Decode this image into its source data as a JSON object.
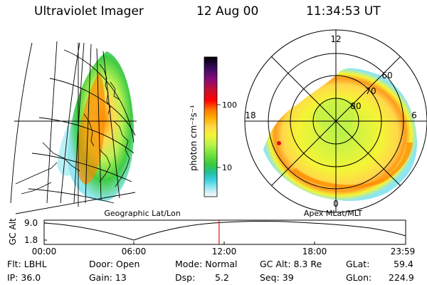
{
  "header": {
    "instrument": "Ultraviolet Imager",
    "date": "12 Aug 00",
    "time": "11:34:53 UT"
  },
  "geo_panel": {
    "label": "Geographic Lat/Lon"
  },
  "colorbar": {
    "unit_label": "photon cm⁻²s⁻¹",
    "ticks": [
      "100",
      "10"
    ],
    "colors": [
      "#000000",
      "#3b0a60",
      "#8a0a7a",
      "#c8102e",
      "#ff0000",
      "#ff7a00",
      "#ffb000",
      "#ffd84a",
      "#f4f436",
      "#b8f24a",
      "#6fe23a",
      "#36c93a",
      "#22c0a0",
      "#3ad0e0",
      "#8ee6f0",
      "#d8f0f6",
      "#f8fbfc"
    ]
  },
  "polar_panel": {
    "label": "Apex MLat/MLT",
    "mlt_labels": {
      "top": "12",
      "left": "18",
      "right": "6",
      "bottom": "0"
    },
    "lat_labels": [
      "60",
      "70",
      "80"
    ]
  },
  "orbit_plot": {
    "ylabel": "GC Alt",
    "y_ticks": [
      "9.0",
      "1.8"
    ],
    "x_ticks": [
      "00:00",
      "06:00",
      "12:00",
      "18:00",
      "23:59"
    ],
    "current_time_fraction": 0.484
  },
  "footer": {
    "flt": "Flt: LBHL",
    "ip": "IP: 36.0",
    "door": "Door: Open",
    "gain": "Gain: 13",
    "mode": "Mode: Normal",
    "dsp_label": "Dsp:",
    "dsp_value": "5.2",
    "gcalt": "GC Alt: 8.3 Re",
    "seq": "Seq: 39",
    "glat_label": "GLat:",
    "glat_value": "59.4",
    "glon_label": "GLon:",
    "glon_value": "224.9"
  }
}
